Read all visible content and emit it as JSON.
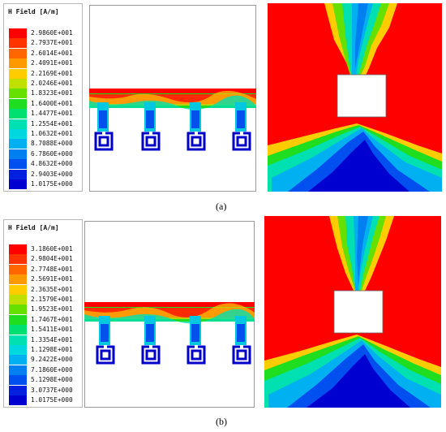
{
  "panels": [
    {
      "caption": "(a)",
      "legend": {
        "title": "H Field [A/m]",
        "values": [
          "2.9860E+001",
          "2.7937E+001",
          "2.6014E+001",
          "2.4091E+001",
          "2.2169E+001",
          "2.0246E+001",
          "1.8323E+001",
          "1.6400E+001",
          "1.4477E+001",
          "1.2554E+001",
          "1.0632E+001",
          "8.7088E+000",
          "6.7860E+000",
          "4.8632E+000",
          "2.9403E+000",
          "1.0175E+000"
        ]
      }
    },
    {
      "caption": "(b)",
      "legend": {
        "title": "H Field [A/m]",
        "values": [
          "3.1860E+001",
          "2.9804E+001",
          "2.7748E+001",
          "2.5691E+001",
          "2.3635E+001",
          "2.1579E+001",
          "1.9523E+001",
          "1.7467E+001",
          "1.5411E+001",
          "1.3354E+001",
          "1.1298E+001",
          "9.2422E+000",
          "7.1860E+000",
          "5.1298E+000",
          "3.0737E+000",
          "1.0175E+000"
        ]
      }
    }
  ],
  "colors": {
    "scale": [
      "#ff0000",
      "#ff3300",
      "#ff6600",
      "#ff9900",
      "#ffcc00",
      "#bfe000",
      "#66e000",
      "#1fdd1f",
      "#00e070",
      "#00e0b0",
      "#00d8e0",
      "#00b0f0",
      "#0080f0",
      "#0050f0",
      "#0020e0",
      "#0000d0"
    ],
    "sim_border": "#9a9a9a"
  }
}
